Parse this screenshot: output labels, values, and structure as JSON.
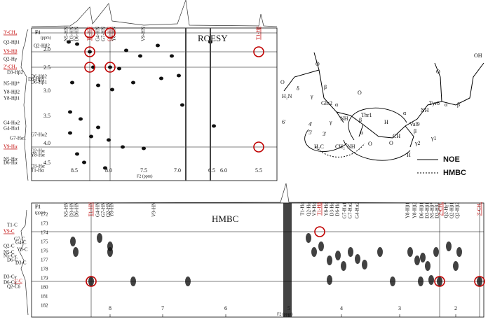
{
  "roesy": {
    "title": "ROESY",
    "f1": "F1",
    "f1_unit": "(ppm)",
    "f2": "F2 (ppm)",
    "x_ticks": [
      "8.5",
      "8.0",
      "7.5",
      "7.0",
      "6.5",
      "6.0",
      "5.5"
    ],
    "y_ticks": [
      "2.0",
      "2.5",
      "3.0",
      "3.5",
      "4.0",
      "4.5"
    ],
    "top_labels": [
      "N5-HN",
      "D3-HN",
      "D6-HN",
      "T1-HN",
      "G4-HN",
      "G7-HN",
      "Q2-HN",
      "Y8-HN",
      "V9-HN",
      "T1-Hβ"
    ],
    "left_labels": [
      "3'-CH₃",
      "Q2-Hβ1",
      "Q2-Hβ2",
      "V9-Hβ",
      "Q2-Hγ",
      "2'-CH₃",
      "D3-Hβ2",
      "D6-Hβ2",
      "D3-Hβ1",
      "N5-Hβ*",
      "D6-Hβ1",
      "Y8-Hβ2",
      "Y8-Hβ1",
      "G4-Hα2",
      "G4-Hα1",
      "G7-Hα2",
      "G7-Hα1",
      "V9-Hα",
      "Q2-Hα",
      "Y8-Hα",
      "N5-Hα",
      "D6-Hα",
      "D3-Hα",
      "T1-Hα"
    ]
  },
  "hmbc": {
    "title": "HMBC",
    "f1": "F1",
    "f1_unit": "(ppm)",
    "f2": "F2 (ppm)",
    "x_ticks": [
      "8",
      "7",
      "6",
      "5",
      "4",
      "3",
      "2"
    ],
    "y_ticks": [
      "172",
      "173",
      "174",
      "175",
      "176",
      "177",
      "178",
      "179",
      "180",
      "181",
      "182"
    ],
    "top_labels": [
      "N5-HN",
      "D3-HN",
      "D6-HN",
      "T1-HN",
      "G4-HN",
      "G7-HN",
      "Q2-HN",
      "Y8-HN",
      "V9-HN",
      "T1-Hα",
      "Q2-Hα",
      "V9-Hα",
      "T1-Hβ",
      "Y8-Hα",
      "D3-Hα",
      "D6-Hα",
      "G7-Hα1",
      "G7-Hα2",
      "G4-Hα2",
      "Y8-Hβ1",
      "Y8-Hβ2",
      "D6-Hβ1",
      "D3-Hβ1",
      "N5-Hβ*",
      "D3-Hβ2",
      "2'-CH₃",
      "Q2-Hγ*",
      "Q2-Hβ1",
      "Q2-Hβ2",
      "3'-CH₃"
    ],
    "left_labels": [
      "T1-C",
      "V9-C",
      "G7-C",
      "G4-C",
      "Q2-C",
      "Y8-C",
      "N5-C",
      "N5-Cγ",
      "D6-C",
      "D3-C",
      "D3-Cγ",
      "1'-C",
      "D6-Cγ",
      "Q2-Cδ"
    ]
  },
  "structure": {
    "labels": [
      "OH",
      "O",
      "Gln2",
      "H₂N",
      "O",
      "δ",
      "γ",
      "β",
      "α",
      "NH",
      "Thr1",
      "O",
      "β",
      "α",
      "γ",
      "6'",
      "5'",
      "4'",
      "3'",
      "H₂C",
      "CH₂",
      "NH",
      "O",
      "O",
      "H",
      "α",
      "Val9",
      "β",
      "CH",
      "γ1",
      "γ2",
      "H",
      "NH",
      "O",
      "Tyr8",
      "α",
      "β"
    ],
    "legend": [
      "NOE",
      "HMBC"
    ]
  }
}
